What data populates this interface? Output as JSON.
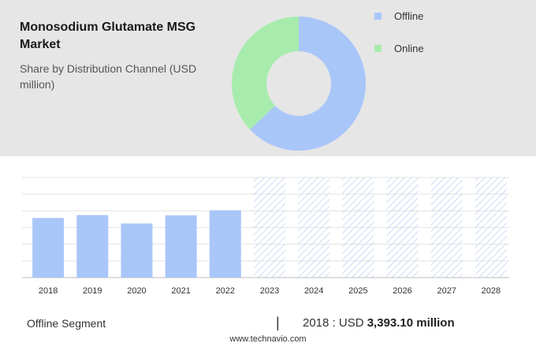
{
  "colors": {
    "offline": "#a9c6f9",
    "online": "#a7ecad",
    "hatch": "#b8cdf2",
    "panel": "#e6e6e6"
  },
  "header": {
    "title": "Monosodium Glutamate MSG Market",
    "subtitle": "Share by Distribution Channel (USD million)"
  },
  "footer": {
    "segment_label": "Offline Segment",
    "divider": "|",
    "year_prefix": "2018 : USD",
    "value_text": "3,393.10 million",
    "source": "www.technavio.com"
  },
  "chart_data": [
    {
      "type": "pie",
      "variant": "donut",
      "categories": [
        "Offline",
        "Online"
      ],
      "values": [
        63,
        37
      ],
      "legend": "right"
    },
    {
      "type": "bar",
      "categories": [
        "2018",
        "2019",
        "2020",
        "2021",
        "2022",
        "2023",
        "2024",
        "2025",
        "2026",
        "2027",
        "2028"
      ],
      "values": [
        3393.1,
        3560,
        3080,
        3540,
        3830,
        null,
        null,
        null,
        null,
        null,
        null
      ],
      "forecast_categories": [
        "2023",
        "2024",
        "2025",
        "2026",
        "2027",
        "2028"
      ],
      "ylim": [
        0,
        5700
      ],
      "grid": true
    }
  ]
}
